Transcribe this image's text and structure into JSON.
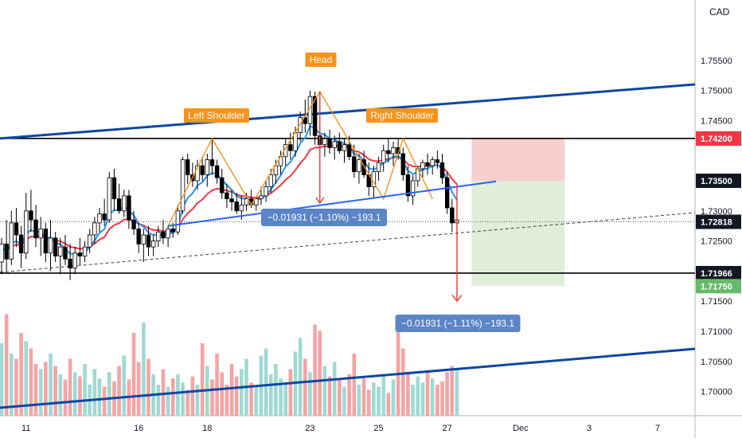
{
  "currency": "CAD",
  "colors": {
    "up": "#26a69a",
    "down": "#ef5350",
    "vol_up": "#9fd9d3",
    "vol_down": "#f5a3a3",
    "ema_fast": "#2196f3",
    "ema_slow": "#f23645",
    "trendline": "#0d47a1",
    "pattern": "#f7931a",
    "measure": "#e53935",
    "neckline": "#2962ff",
    "label_box": "#5b85c7"
  },
  "chart_data": {
    "type": "candlestick",
    "title": "",
    "ylim": [
      1.6965,
      1.7645
    ],
    "y_ticks": [
      "1.70000",
      "1.70500",
      "1.71000",
      "1.71500",
      "1.72500",
      "1.73000",
      "1.74500",
      "1.75000",
      "1.75500"
    ],
    "x_ticks": [
      "11",
      "16",
      "18",
      "23",
      "25",
      "27",
      "Dec",
      "3",
      "7"
    ],
    "x_tick_bars": [
      5,
      28,
      42,
      63,
      77,
      91,
      106,
      120,
      134
    ],
    "price_labels": [
      {
        "text": "1.74203",
        "value": 1.74203,
        "style": "dark"
      },
      {
        "text": "1.74200",
        "value": 1.742,
        "style": "red"
      },
      {
        "text": "1.73500",
        "value": 1.735,
        "style": "dark"
      },
      {
        "text": "1.72818",
        "value": 1.72818,
        "style": "dark"
      },
      {
        "text": "1.71966",
        "value": 1.71966,
        "style": "dark"
      },
      {
        "text": "1.71750",
        "value": 1.7175,
        "style": "green"
      }
    ],
    "pattern_labels": [
      "Left Shoulder",
      "Head",
      "Right Shoulder"
    ],
    "measure_labels": [
      "−0.01931 (−1.10%) −193.1",
      "−0.01931 (−1.11%) −193.1"
    ],
    "candles": [
      [
        1.7215,
        1.7255,
        1.7195,
        1.7245
      ],
      [
        1.7245,
        1.7285,
        1.72,
        1.722
      ],
      [
        1.722,
        1.73,
        1.721,
        1.728
      ],
      [
        1.728,
        1.7305,
        1.724,
        1.726
      ],
      [
        1.726,
        1.7275,
        1.7205,
        1.723
      ],
      [
        1.723,
        1.733,
        1.722,
        1.73
      ],
      [
        1.73,
        1.7335,
        1.7265,
        1.7285
      ],
      [
        1.7285,
        1.731,
        1.724,
        1.7255
      ],
      [
        1.7255,
        1.729,
        1.7225,
        1.727
      ],
      [
        1.727,
        1.728,
        1.7215,
        1.723
      ],
      [
        1.723,
        1.7285,
        1.72,
        1.7255
      ],
      [
        1.7255,
        1.7265,
        1.7215,
        1.7225
      ],
      [
        1.7225,
        1.7255,
        1.7195,
        1.724
      ],
      [
        1.724,
        1.726,
        1.721,
        1.722
      ],
      [
        1.722,
        1.7245,
        1.7185,
        1.7205
      ],
      [
        1.7205,
        1.724,
        1.7195,
        1.723
      ],
      [
        1.723,
        1.7255,
        1.721,
        1.7225
      ],
      [
        1.7225,
        1.725,
        1.7215,
        1.724
      ],
      [
        1.724,
        1.727,
        1.723,
        1.726
      ],
      [
        1.726,
        1.729,
        1.7245,
        1.728
      ],
      [
        1.728,
        1.7305,
        1.7265,
        1.7295
      ],
      [
        1.7295,
        1.732,
        1.7275,
        1.7285
      ],
      [
        1.7285,
        1.7365,
        1.728,
        1.7355
      ],
      [
        1.7355,
        1.737,
        1.73,
        1.732
      ],
      [
        1.732,
        1.7345,
        1.7295,
        1.73
      ],
      [
        1.73,
        1.7335,
        1.729,
        1.7325
      ],
      [
        1.7325,
        1.7335,
        1.727,
        1.7285
      ],
      [
        1.7285,
        1.73,
        1.726,
        1.727
      ],
      [
        1.727,
        1.728,
        1.723,
        1.7245
      ],
      [
        1.7245,
        1.727,
        1.7215,
        1.726
      ],
      [
        1.726,
        1.7275,
        1.7225,
        1.724
      ],
      [
        1.724,
        1.726,
        1.7225,
        1.725
      ],
      [
        1.725,
        1.7275,
        1.724,
        1.7265
      ],
      [
        1.7265,
        1.7285,
        1.7245,
        1.7255
      ],
      [
        1.7255,
        1.7275,
        1.724,
        1.727
      ],
      [
        1.727,
        1.728,
        1.7255,
        1.7265
      ],
      [
        1.7265,
        1.731,
        1.726,
        1.73
      ],
      [
        1.73,
        1.739,
        1.7295,
        1.7385
      ],
      [
        1.7385,
        1.7395,
        1.7345,
        1.736
      ],
      [
        1.736,
        1.738,
        1.734,
        1.735
      ],
      [
        1.735,
        1.7385,
        1.7335,
        1.7375
      ],
      [
        1.7375,
        1.739,
        1.735,
        1.736
      ],
      [
        1.736,
        1.7395,
        1.734,
        1.7385
      ],
      [
        1.7385,
        1.742,
        1.736,
        1.7375
      ],
      [
        1.7375,
        1.7385,
        1.7345,
        1.7355
      ],
      [
        1.7355,
        1.737,
        1.732,
        1.733
      ],
      [
        1.733,
        1.7345,
        1.7305,
        1.732
      ],
      [
        1.732,
        1.7335,
        1.73,
        1.7315
      ],
      [
        1.7315,
        1.733,
        1.7295,
        1.73
      ],
      [
        1.73,
        1.7325,
        1.7285,
        1.731
      ],
      [
        1.731,
        1.733,
        1.73,
        1.732
      ],
      [
        1.732,
        1.7335,
        1.7305,
        1.731
      ],
      [
        1.731,
        1.7325,
        1.73,
        1.732
      ],
      [
        1.732,
        1.734,
        1.731,
        1.7325
      ],
      [
        1.7325,
        1.735,
        1.7315,
        1.734
      ],
      [
        1.734,
        1.737,
        1.733,
        1.736
      ],
      [
        1.736,
        1.7385,
        1.7345,
        1.7375
      ],
      [
        1.7375,
        1.74,
        1.736,
        1.739
      ],
      [
        1.739,
        1.742,
        1.7375,
        1.741
      ],
      [
        1.741,
        1.743,
        1.7385,
        1.74
      ],
      [
        1.74,
        1.744,
        1.739,
        1.743
      ],
      [
        1.743,
        1.7465,
        1.7415,
        1.7455
      ],
      [
        1.7455,
        1.7485,
        1.743,
        1.7445
      ],
      [
        1.7445,
        1.75,
        1.7425,
        1.749
      ],
      [
        1.749,
        1.7498,
        1.741,
        1.7425
      ],
      [
        1.7425,
        1.744,
        1.7395,
        1.741
      ],
      [
        1.741,
        1.743,
        1.739,
        1.742
      ],
      [
        1.742,
        1.7435,
        1.7395,
        1.7405
      ],
      [
        1.7405,
        1.7425,
        1.7385,
        1.7415
      ],
      [
        1.7415,
        1.743,
        1.7395,
        1.74
      ],
      [
        1.74,
        1.742,
        1.738,
        1.741
      ],
      [
        1.741,
        1.7425,
        1.7385,
        1.739
      ],
      [
        1.739,
        1.741,
        1.7355,
        1.7365
      ],
      [
        1.7365,
        1.7395,
        1.7345,
        1.7385
      ],
      [
        1.7385,
        1.74,
        1.7355,
        1.736
      ],
      [
        1.736,
        1.738,
        1.7325,
        1.734
      ],
      [
        1.734,
        1.7375,
        1.732,
        1.7365
      ],
      [
        1.7365,
        1.739,
        1.735,
        1.738
      ],
      [
        1.738,
        1.741,
        1.7365,
        1.74
      ],
      [
        1.74,
        1.742,
        1.738,
        1.7395
      ],
      [
        1.7395,
        1.7415,
        1.7375,
        1.7405
      ],
      [
        1.7405,
        1.742,
        1.7385,
        1.7395
      ],
      [
        1.7395,
        1.7405,
        1.735,
        1.736
      ],
      [
        1.736,
        1.7375,
        1.7315,
        1.7325
      ],
      [
        1.7325,
        1.736,
        1.731,
        1.735
      ],
      [
        1.735,
        1.7375,
        1.734,
        1.737
      ],
      [
        1.737,
        1.7385,
        1.7355,
        1.738
      ],
      [
        1.738,
        1.7395,
        1.736,
        1.7375
      ],
      [
        1.7375,
        1.739,
        1.736,
        1.7385
      ],
      [
        1.7385,
        1.74,
        1.737,
        1.738
      ],
      [
        1.738,
        1.7395,
        1.7345,
        1.7355
      ],
      [
        1.7355,
        1.7365,
        1.7295,
        1.7305
      ],
      [
        1.7305,
        1.732,
        1.7265,
        1.728
      ],
      [
        1.728,
        1.7295,
        1.726,
        1.7285
      ]
    ],
    "volume": [
      0.7,
      0.98,
      0.6,
      0.55,
      0.8,
      0.72,
      0.65,
      0.5,
      0.45,
      0.52,
      0.6,
      0.48,
      0.4,
      0.35,
      0.55,
      0.42,
      0.38,
      0.5,
      0.3,
      0.45,
      0.36,
      0.28,
      0.42,
      0.33,
      0.48,
      0.58,
      0.35,
      0.8,
      0.52,
      0.9,
      0.55,
      0.4,
      0.3,
      0.45,
      0.28,
      0.36,
      0.4,
      0.32,
      0.25,
      0.38,
      0.3,
      0.7,
      0.48,
      0.35,
      0.6,
      0.42,
      0.3,
      0.5,
      0.38,
      0.45,
      0.55,
      0.32,
      0.28,
      0.58,
      0.65,
      0.4,
      0.5,
      0.36,
      0.3,
      0.45,
      0.62,
      0.75,
      0.55,
      0.42,
      0.88,
      0.82,
      0.48,
      0.38,
      0.52,
      0.35,
      0.28,
      0.4,
      0.6,
      0.3,
      0.36,
      0.25,
      0.32,
      0.28,
      0.4,
      0.22,
      0.35,
      0.9,
      0.65,
      0.42,
      0.3,
      0.38,
      0.32,
      0.42,
      0.36,
      0.3,
      0.33,
      0.42,
      0.48,
      0.45
    ]
  }
}
